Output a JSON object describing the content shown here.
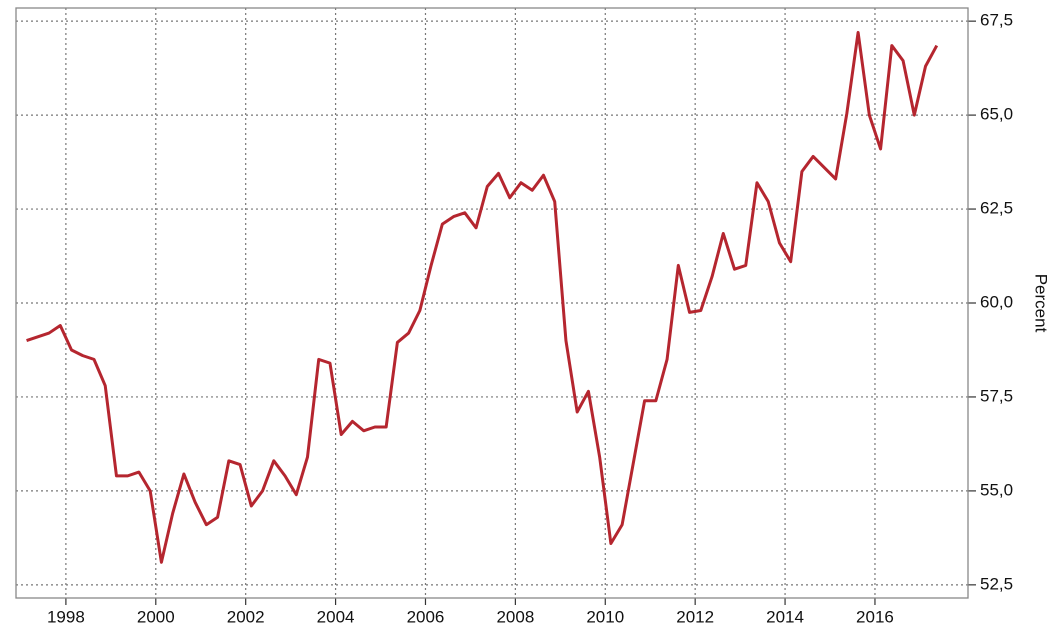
{
  "chart_data": {
    "type": "line",
    "ylabel": "Percent",
    "x": [
      1997.125,
      1997.375,
      1997.625,
      1997.875,
      1998.125,
      1998.375,
      1998.625,
      1998.875,
      1999.125,
      1999.375,
      1999.625,
      1999.875,
      2000.125,
      2000.375,
      2000.625,
      2000.875,
      2001.125,
      2001.375,
      2001.625,
      2001.875,
      2002.125,
      2002.375,
      2002.625,
      2002.875,
      2003.125,
      2003.375,
      2003.625,
      2003.875,
      2004.125,
      2004.375,
      2004.625,
      2004.875,
      2005.125,
      2005.375,
      2005.625,
      2005.875,
      2006.125,
      2006.375,
      2006.625,
      2006.875,
      2007.125,
      2007.375,
      2007.625,
      2007.875,
      2008.125,
      2008.375,
      2008.625,
      2008.875,
      2009.125,
      2009.375,
      2009.625,
      2009.875,
      2010.125,
      2010.375,
      2010.625,
      2010.875,
      2011.125,
      2011.375,
      2011.625,
      2011.875,
      2012.125,
      2012.375,
      2012.625,
      2012.875,
      2013.125,
      2013.375,
      2013.625,
      2013.875,
      2014.125,
      2014.375,
      2014.625,
      2014.875,
      2015.125,
      2015.375,
      2015.625,
      2015.875,
      2016.125,
      2016.375,
      2016.625,
      2016.875,
      2017.125,
      2017.375
    ],
    "series": [
      {
        "color": "#b5262f",
        "values": [
          59.0,
          59.1,
          59.2,
          59.4,
          58.75,
          58.6,
          58.5,
          57.8,
          55.4,
          55.4,
          55.5,
          55.0,
          53.1,
          54.4,
          55.45,
          54.7,
          54.1,
          54.3,
          55.8,
          55.7,
          54.6,
          55.0,
          55.8,
          55.4,
          54.9,
          55.9,
          58.5,
          58.4,
          56.5,
          56.85,
          56.6,
          56.7,
          56.7,
          58.95,
          59.2,
          59.8,
          61.0,
          62.1,
          62.3,
          62.4,
          62.0,
          63.1,
          63.45,
          62.8,
          63.2,
          63.0,
          63.4,
          62.7,
          59.0,
          57.1,
          57.65,
          55.9,
          53.6,
          54.1,
          55.75,
          57.4,
          57.4,
          58.5,
          61.0,
          59.75,
          59.8,
          60.7,
          61.85,
          60.9,
          61.0,
          63.2,
          62.7,
          61.6,
          61.1,
          63.5,
          63.9,
          63.6,
          63.3,
          65.05,
          67.2,
          65.0,
          64.1,
          66.85,
          66.45,
          65.0,
          66.3,
          66.85
        ]
      }
    ],
    "xlim": [
      1996.89,
      2018.07
    ],
    "xticks": [
      1998,
      2000,
      2002,
      2004,
      2006,
      2008,
      2010,
      2012,
      2014,
      2016
    ],
    "ylim": [
      52.15,
      67.85
    ],
    "yticks": [
      {
        "value": 52.5,
        "label": "52,5"
      },
      {
        "value": 55,
        "label": "55,0"
      },
      {
        "value": 57.5,
        "label": "57,5"
      },
      {
        "value": 60,
        "label": "60,0"
      },
      {
        "value": 62.5,
        "label": "62,5"
      },
      {
        "value": 65,
        "label": "65,0"
      },
      {
        "value": 67.5,
        "label": "67,5"
      }
    ],
    "grid": true
  }
}
